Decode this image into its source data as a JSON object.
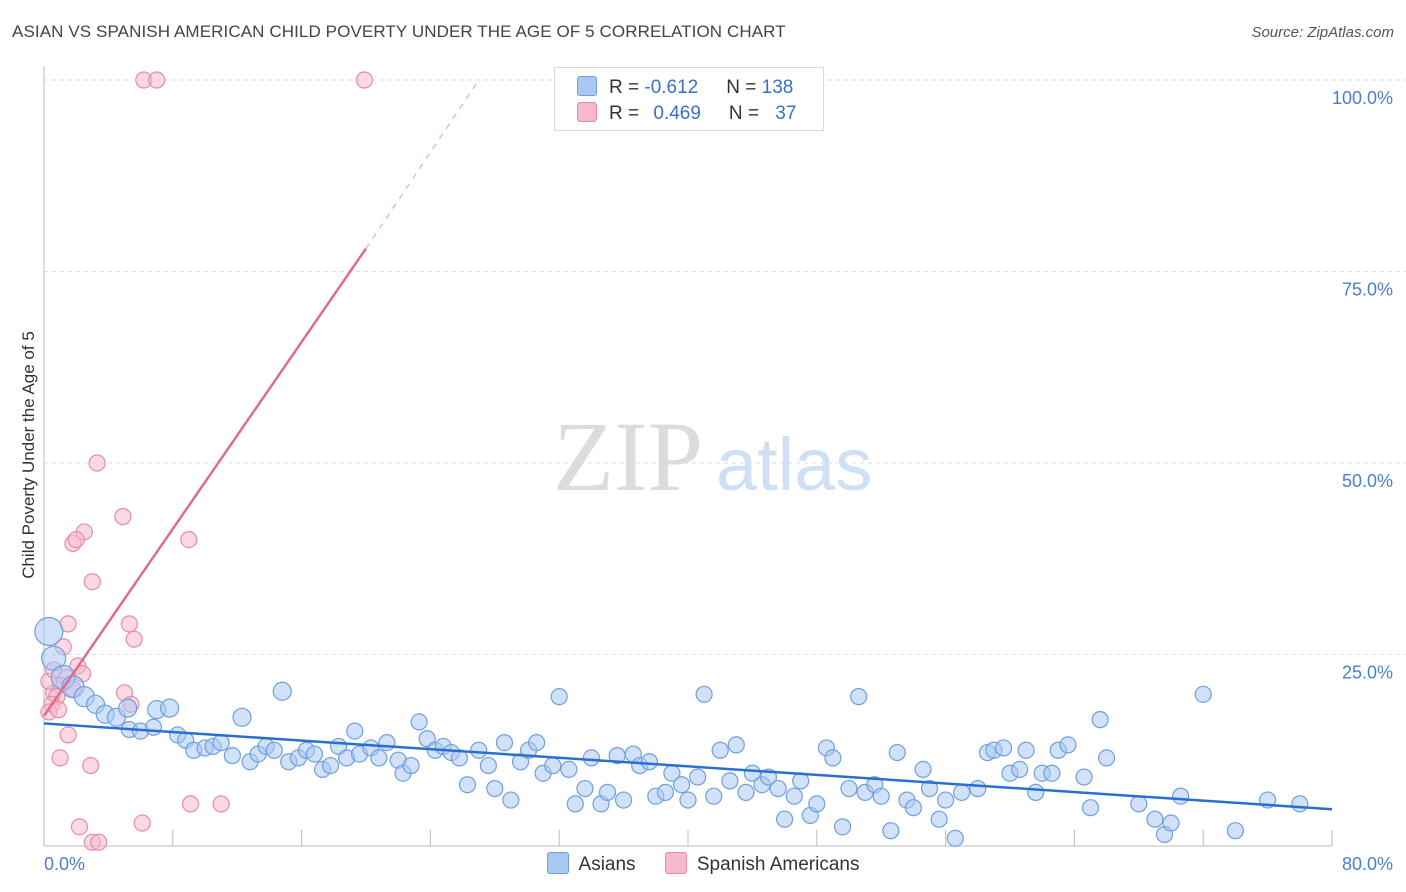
{
  "header": {
    "title": "ASIAN VS SPANISH AMERICAN CHILD POVERTY UNDER THE AGE OF 5 CORRELATION CHART",
    "source": "Source: ZipAtlas.com"
  },
  "watermark": {
    "zip": "ZIP",
    "atlas": "atlas"
  },
  "legend_top": {
    "rows": [
      {
        "r_label": "R = ",
        "r_value": "-0.612",
        "n_label": "N = ",
        "n_value": "138"
      },
      {
        "r_label": "R = ",
        "r_value": "0.469",
        "n_label": "N = ",
        "n_value": "37"
      }
    ]
  },
  "colors": {
    "asians_fill": "#a9c8f2",
    "asians_stroke": "#6f9fe0",
    "asians_line": "#2a6fd0",
    "spanish_fill": "#f6b9cb",
    "spanish_stroke": "#ea8aa8",
    "spanish_line": "#e06a94",
    "tick_label": "#4a7fd0"
  },
  "chart_data": {
    "type": "scatter",
    "title": "ASIAN VS SPANISH AMERICAN CHILD POVERTY UNDER THE AGE OF 5 CORRELATION CHART",
    "ylabel": "Child Poverty Under the Age of 5",
    "xlim": [
      0,
      80
    ],
    "ylim": [
      0,
      100
    ],
    "x_ticks": [
      "0.0%",
      "80.0%"
    ],
    "y_ticks": [
      {
        "value": 25,
        "label": "25.0%"
      },
      {
        "value": 50,
        "label": "50.0%"
      },
      {
        "value": 75,
        "label": "75.0%"
      },
      {
        "value": 100,
        "label": "100.0%"
      }
    ],
    "grid": true,
    "legend_position": "bottom",
    "series": [
      {
        "name": "Asians",
        "r": -0.612,
        "n": 138,
        "trend": {
          "x0": 0,
          "y0": 16.0,
          "x1": 80,
          "y1": 4.8
        },
        "points": [
          [
            0.3,
            28.0,
            14
          ],
          [
            0.6,
            24.5,
            12
          ],
          [
            1.2,
            22.0,
            12
          ],
          [
            1.8,
            20.8,
            11
          ],
          [
            2.5,
            19.5,
            10
          ],
          [
            3.2,
            18.5,
            9
          ],
          [
            3.8,
            17.2,
            9
          ],
          [
            4.5,
            16.8,
            9
          ],
          [
            5.2,
            18.0,
            9
          ],
          [
            5.3,
            15.2,
            8
          ],
          [
            6.0,
            15.0,
            8
          ],
          [
            6.8,
            15.5,
            8
          ],
          [
            7.0,
            17.8,
            9
          ],
          [
            7.8,
            18.0,
            9
          ],
          [
            8.3,
            14.5,
            8
          ],
          [
            8.8,
            13.8,
            8
          ],
          [
            9.3,
            12.5,
            8
          ],
          [
            10.0,
            12.8,
            8
          ],
          [
            10.5,
            13.0,
            8
          ],
          [
            11.0,
            13.5,
            8
          ],
          [
            11.7,
            11.8,
            8
          ],
          [
            12.3,
            16.8,
            9
          ],
          [
            12.8,
            11.0,
            8
          ],
          [
            13.3,
            12.0,
            8
          ],
          [
            13.8,
            13.0,
            8
          ],
          [
            14.3,
            12.5,
            8
          ],
          [
            14.8,
            20.2,
            9
          ],
          [
            15.2,
            11.0,
            8
          ],
          [
            15.8,
            11.5,
            8
          ],
          [
            16.3,
            12.5,
            8
          ],
          [
            16.8,
            12.0,
            8
          ],
          [
            17.3,
            10.0,
            8
          ],
          [
            17.8,
            10.5,
            8
          ],
          [
            18.3,
            13.0,
            8
          ],
          [
            18.8,
            11.5,
            8
          ],
          [
            19.3,
            15.0,
            8
          ],
          [
            19.6,
            12.0,
            8
          ],
          [
            20.3,
            12.8,
            8
          ],
          [
            20.8,
            11.5,
            8
          ],
          [
            21.3,
            13.5,
            8
          ],
          [
            22.0,
            11.2,
            8
          ],
          [
            22.3,
            9.5,
            8
          ],
          [
            22.8,
            10.5,
            8
          ],
          [
            23.3,
            16.2,
            8
          ],
          [
            23.8,
            14.0,
            8
          ],
          [
            24.3,
            12.5,
            8
          ],
          [
            24.8,
            13.0,
            8
          ],
          [
            25.3,
            12.2,
            8
          ],
          [
            25.8,
            11.5,
            8
          ],
          [
            26.3,
            8.0,
            8
          ],
          [
            27.0,
            12.5,
            8
          ],
          [
            27.6,
            10.5,
            8
          ],
          [
            28.0,
            7.5,
            8
          ],
          [
            28.6,
            13.5,
            8
          ],
          [
            29.0,
            6.0,
            8
          ],
          [
            29.6,
            11.0,
            8
          ],
          [
            30.1,
            12.5,
            8
          ],
          [
            30.6,
            13.5,
            8
          ],
          [
            31.0,
            9.5,
            8
          ],
          [
            31.6,
            10.5,
            8
          ],
          [
            32.0,
            19.5,
            8
          ],
          [
            32.6,
            10.0,
            8
          ],
          [
            33.0,
            5.5,
            8
          ],
          [
            33.6,
            7.5,
            8
          ],
          [
            34.0,
            11.5,
            8
          ],
          [
            34.6,
            5.5,
            8
          ],
          [
            35.0,
            7.0,
            8
          ],
          [
            35.6,
            11.8,
            8
          ],
          [
            36.0,
            6.0,
            8
          ],
          [
            36.6,
            12.0,
            8
          ],
          [
            37.0,
            10.5,
            8
          ],
          [
            37.6,
            11.0,
            8
          ],
          [
            38.0,
            6.5,
            8
          ],
          [
            38.6,
            7.0,
            8
          ],
          [
            39.0,
            9.5,
            8
          ],
          [
            39.6,
            8.0,
            8
          ],
          [
            40.0,
            6.0,
            8
          ],
          [
            40.6,
            9.0,
            8
          ],
          [
            41.0,
            19.8,
            8
          ],
          [
            41.6,
            6.5,
            8
          ],
          [
            42.0,
            12.5,
            8
          ],
          [
            42.6,
            8.5,
            8
          ],
          [
            43.0,
            13.2,
            8
          ],
          [
            43.6,
            7.0,
            8
          ],
          [
            44.0,
            9.5,
            8
          ],
          [
            44.6,
            8.0,
            8
          ],
          [
            45.0,
            9.0,
            8
          ],
          [
            45.6,
            7.5,
            8
          ],
          [
            46.0,
            3.5,
            8
          ],
          [
            46.6,
            6.5,
            8
          ],
          [
            47.0,
            8.5,
            8
          ],
          [
            47.6,
            4.0,
            8
          ],
          [
            48.0,
            5.5,
            8
          ],
          [
            48.6,
            12.8,
            8
          ],
          [
            49.0,
            11.5,
            8
          ],
          [
            49.6,
            2.5,
            8
          ],
          [
            50.0,
            7.5,
            8
          ],
          [
            50.6,
            19.5,
            8
          ],
          [
            51.0,
            7.0,
            8
          ],
          [
            51.6,
            8.0,
            8
          ],
          [
            52.0,
            6.5,
            8
          ],
          [
            52.6,
            2.0,
            8
          ],
          [
            53.0,
            12.2,
            8
          ],
          [
            53.6,
            6.0,
            8
          ],
          [
            54.0,
            5.0,
            8
          ],
          [
            54.6,
            10.0,
            8
          ],
          [
            55.0,
            7.5,
            8
          ],
          [
            55.6,
            3.5,
            8
          ],
          [
            56.0,
            6.0,
            8
          ],
          [
            56.6,
            1.0,
            8
          ],
          [
            57.0,
            7.0,
            8
          ],
          [
            58.0,
            7.5,
            8
          ],
          [
            58.6,
            12.2,
            8
          ],
          [
            59.0,
            12.5,
            8
          ],
          [
            59.6,
            12.8,
            8
          ],
          [
            60.0,
            9.5,
            8
          ],
          [
            60.6,
            10.0,
            8
          ],
          [
            61.0,
            12.5,
            8
          ],
          [
            61.6,
            7.0,
            8
          ],
          [
            62.0,
            9.5,
            8
          ],
          [
            62.6,
            9.5,
            8
          ],
          [
            63.0,
            12.5,
            8
          ],
          [
            63.6,
            13.2,
            8
          ],
          [
            64.6,
            9.0,
            8
          ],
          [
            65.0,
            5.0,
            8
          ],
          [
            65.6,
            16.5,
            8
          ],
          [
            66.0,
            11.5,
            8
          ],
          [
            68.0,
            5.5,
            8
          ],
          [
            69.0,
            3.5,
            8
          ],
          [
            69.6,
            1.5,
            8
          ],
          [
            70.0,
            3.0,
            8
          ],
          [
            70.6,
            6.5,
            8
          ],
          [
            72.0,
            19.8,
            8
          ],
          [
            74.0,
            2.0,
            8
          ],
          [
            76.0,
            6.0,
            8
          ],
          [
            78.0,
            5.5,
            8
          ]
        ]
      },
      {
        "name": "Spanish Americans",
        "r": 0.469,
        "n": 37,
        "trend": {
          "x0": 0,
          "y0": 17.0,
          "x1": 20,
          "y1": 78.0,
          "dash_x1": 27,
          "dash_y1": 100.0
        },
        "points": [
          [
            6.2,
            100.0,
            8
          ],
          [
            7.0,
            100.0,
            8
          ],
          [
            19.9,
            100.0,
            8
          ],
          [
            3.3,
            50.0,
            8
          ],
          [
            4.9,
            43.0,
            8
          ],
          [
            2.5,
            41.0,
            8
          ],
          [
            9.0,
            40.0,
            8
          ],
          [
            1.8,
            39.5,
            8
          ],
          [
            2.0,
            40.0,
            8
          ],
          [
            3.0,
            34.5,
            8
          ],
          [
            1.5,
            29.0,
            8
          ],
          [
            5.3,
            29.0,
            8
          ],
          [
            1.2,
            26.0,
            8
          ],
          [
            5.6,
            27.0,
            8
          ],
          [
            2.1,
            23.5,
            8
          ],
          [
            1.4,
            22.0,
            8
          ],
          [
            2.4,
            22.5,
            8
          ],
          [
            0.6,
            20.0,
            8
          ],
          [
            1.0,
            21.0,
            8
          ],
          [
            0.8,
            19.5,
            8
          ],
          [
            0.5,
            18.5,
            8
          ],
          [
            0.3,
            17.5,
            8
          ],
          [
            0.9,
            17.8,
            8
          ],
          [
            5.0,
            20.0,
            8
          ],
          [
            5.4,
            18.5,
            8
          ],
          [
            1.5,
            14.5,
            8
          ],
          [
            1.0,
            11.5,
            8
          ],
          [
            2.9,
            10.5,
            8
          ],
          [
            9.1,
            5.5,
            8
          ],
          [
            11.0,
            5.5,
            8
          ],
          [
            2.2,
            2.5,
            8
          ],
          [
            6.1,
            3.0,
            8
          ],
          [
            3.0,
            0.5,
            8
          ],
          [
            3.4,
            0.5,
            8
          ],
          [
            0.3,
            21.5,
            8
          ],
          [
            1.8,
            20.5,
            8
          ],
          [
            0.6,
            23.0,
            8
          ]
        ]
      }
    ]
  },
  "legend_bottom": {
    "items": [
      "Asians",
      "Spanish Americans"
    ]
  }
}
